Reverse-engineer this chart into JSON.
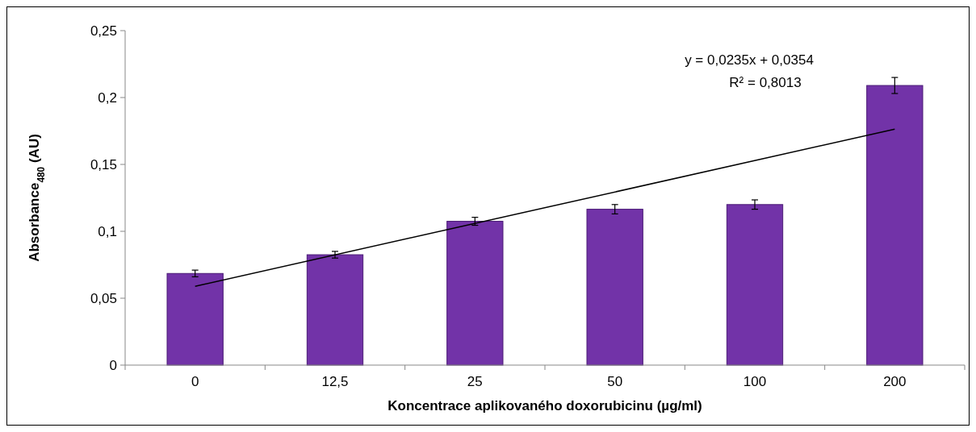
{
  "chart_data": {
    "type": "bar",
    "xlabel": "Koncentrace aplikovaného doxorubicinu (µg/ml)",
    "ylabel": "Absorbance$_{480}$ (AU)",
    "categories": [
      "0",
      "12,5",
      "25",
      "50",
      "100",
      "200"
    ],
    "series": [
      {
        "color": "#7233a8",
        "values": [
          0.0685,
          0.0825,
          0.1075,
          0.1165,
          0.12,
          0.209
        ],
        "errors": [
          0.0025,
          0.0025,
          0.003,
          0.0035,
          0.0035,
          0.006
        ]
      },
      {
        "type": "line",
        "color": "#000000",
        "x": [
          "0",
          "200"
        ],
        "values": [
          0.0589,
          0.1764
        ]
      }
    ],
    "ylim": [
      0,
      0.25
    ],
    "yticks": [
      {
        "value": 0,
        "label": "0"
      },
      {
        "value": 0.05,
        "label": "0,05"
      },
      {
        "value": 0.1,
        "label": "0,1"
      },
      {
        "value": 0.15,
        "label": "0,15"
      },
      {
        "value": 0.2,
        "label": "0,2"
      },
      {
        "value": 0.25,
        "label": "0,25"
      }
    ],
    "annotations": [
      "y = 0,0235x + 0,0354",
      "R² = 0,8013"
    ],
    "grid": false
  }
}
